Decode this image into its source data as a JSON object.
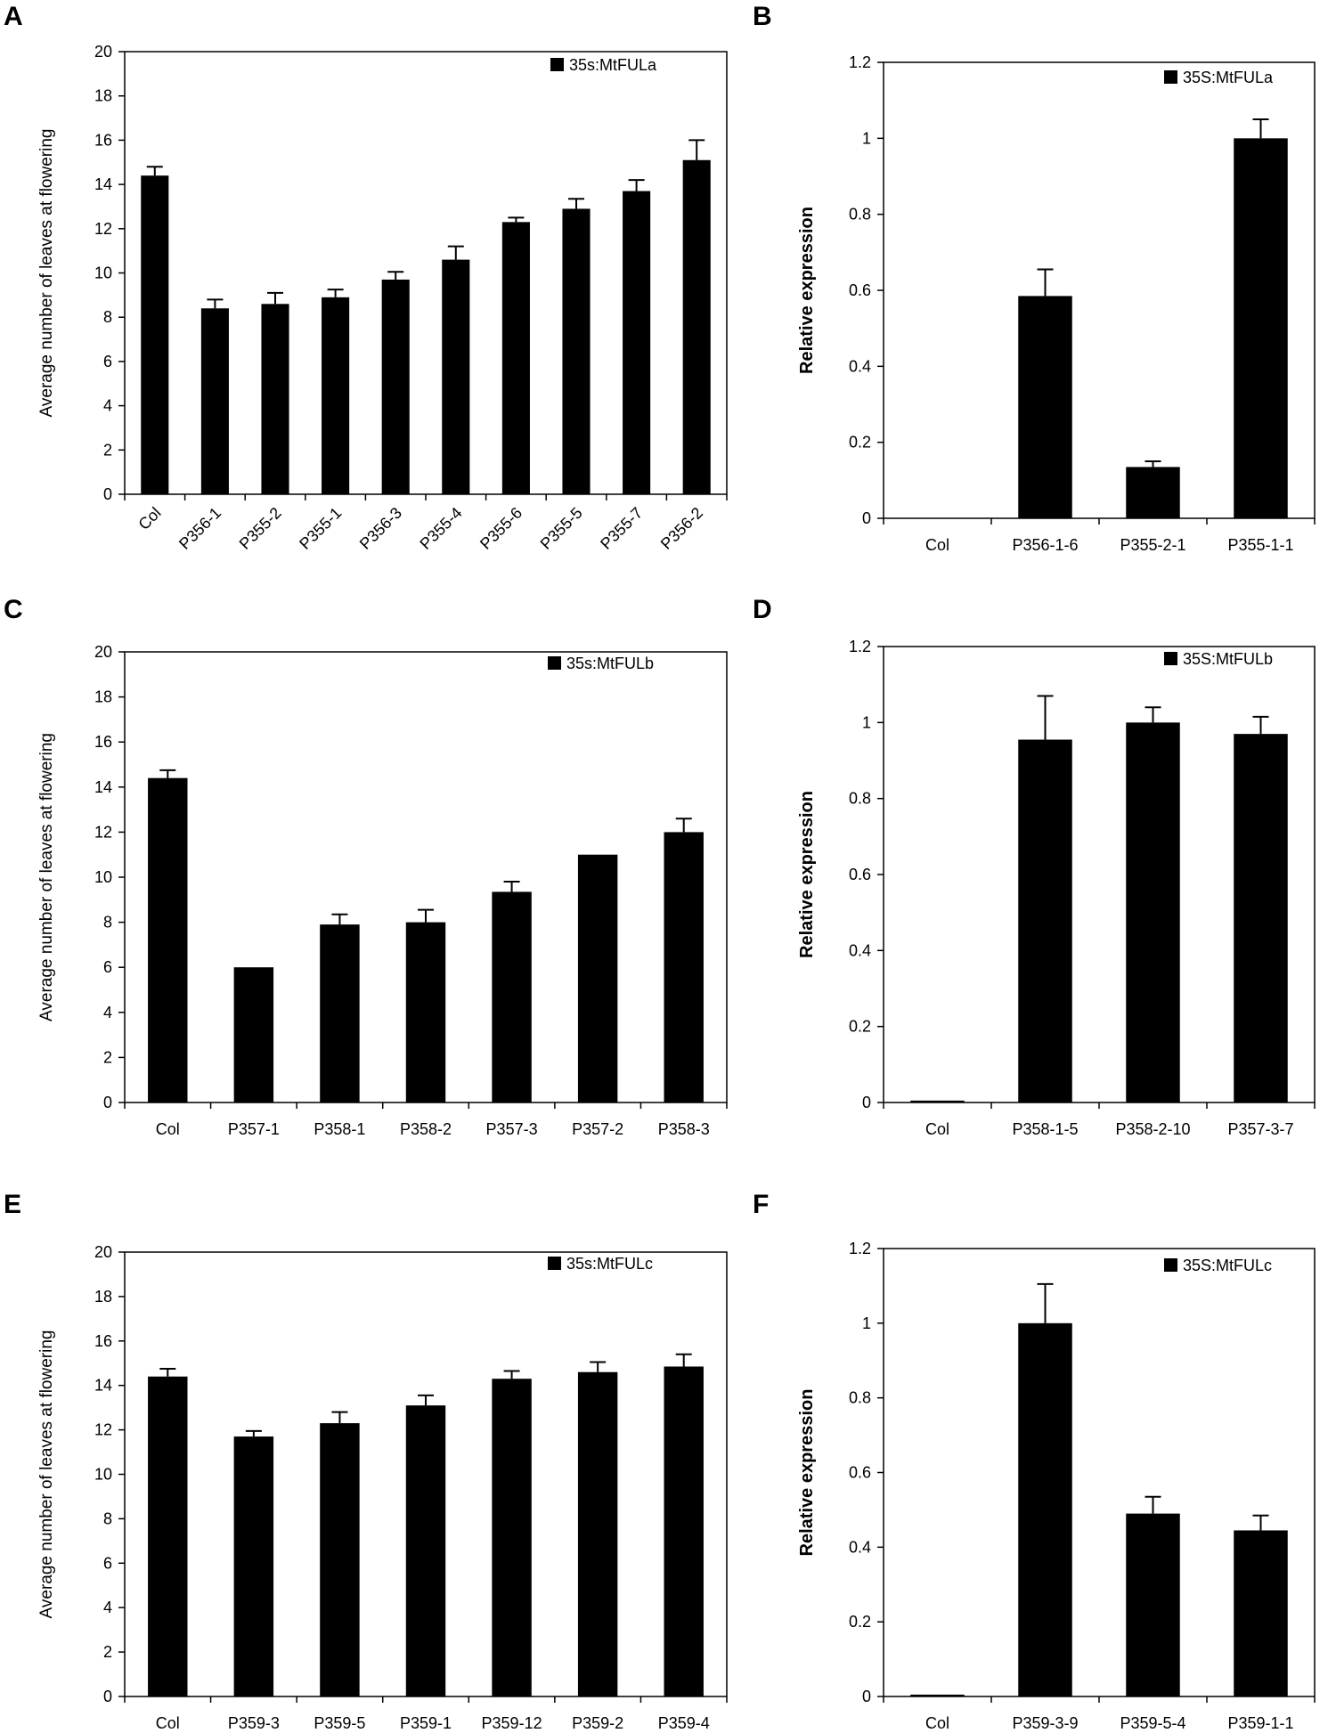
{
  "chart_data": [
    {
      "type": "bar",
      "panel": "A",
      "legend": "35s:MtFULa",
      "ylabel": "Average number of leaves at flowering",
      "ylim": [
        0,
        20
      ],
      "ytick_step": 2,
      "ytick_labels": [
        "0",
        "2",
        "4",
        "6",
        "8",
        "10",
        "12",
        "14",
        "16",
        "18",
        "20"
      ],
      "rotated_labels": true,
      "categories": [
        "Col",
        "P356-1",
        "P355-2",
        "P355-1",
        "P356-3",
        "P355-4",
        "P355-6",
        "P355-5",
        "P355-7",
        "P356-2"
      ],
      "values": [
        14.4,
        8.4,
        8.6,
        8.9,
        9.7,
        10.6,
        12.3,
        12.9,
        13.7,
        15.1
      ],
      "errors": [
        0.4,
        0.4,
        0.5,
        0.35,
        0.35,
        0.6,
        0.2,
        0.45,
        0.5,
        0.9
      ]
    },
    {
      "type": "bar",
      "panel": "B",
      "legend": "35S:MtFULa",
      "ylabel": "Relative expression",
      "ylim": [
        0,
        1.2
      ],
      "ytick_step": 0.2,
      "ytick_labels": [
        "0",
        "0.2",
        "0.4",
        "0.6",
        "0.8",
        "1",
        "1.2"
      ],
      "rotated_labels": false,
      "categories": [
        "Col",
        "P356-1-6",
        "P355-2-1",
        "P355-1-1"
      ],
      "values": [
        0.0,
        0.585,
        0.135,
        1.0
      ],
      "errors": [
        0.0,
        0.07,
        0.015,
        0.05
      ]
    },
    {
      "type": "bar",
      "panel": "C",
      "legend": "35s:MtFULb",
      "ylabel": "Average number of leaves at flowering",
      "ylim": [
        0,
        20
      ],
      "ytick_step": 2,
      "ytick_labels": [
        "0",
        "2",
        "4",
        "6",
        "8",
        "10",
        "12",
        "14",
        "16",
        "18",
        "20"
      ],
      "rotated_labels": false,
      "categories": [
        "Col",
        "P357-1",
        "P358-1",
        "P358-2",
        "P357-3",
        "P357-2",
        "P358-3"
      ],
      "values": [
        14.4,
        6.0,
        7.9,
        8.0,
        9.35,
        11.0,
        12.0
      ],
      "errors": [
        0.35,
        0.0,
        0.45,
        0.55,
        0.45,
        0.0,
        0.6
      ]
    },
    {
      "type": "bar",
      "panel": "D",
      "legend": "35S:MtFULb",
      "ylabel": "Relative expression",
      "ylim": [
        0,
        1.2
      ],
      "ytick_step": 0.2,
      "ytick_labels": [
        "0",
        "0.2",
        "0.4",
        "0.6",
        "0.8",
        "1",
        "1.2"
      ],
      "rotated_labels": false,
      "categories": [
        "Col",
        "P358-1-5",
        "P358-2-10",
        "P357-3-7"
      ],
      "values": [
        0.005,
        0.955,
        1.0,
        0.97
      ],
      "errors": [
        0.0,
        0.115,
        0.04,
        0.045
      ]
    },
    {
      "type": "bar",
      "panel": "E",
      "legend": "35s:MtFULc",
      "ylabel": "Average number of leaves at flowering",
      "ylim": [
        0,
        20
      ],
      "ytick_step": 2,
      "ytick_labels": [
        "0",
        "2",
        "4",
        "6",
        "8",
        "10",
        "12",
        "14",
        "16",
        "18",
        "20"
      ],
      "rotated_labels": false,
      "categories": [
        "Col",
        "P359-3",
        "P359-5",
        "P359-1",
        "P359-12",
        "P359-2",
        "P359-4"
      ],
      "values": [
        14.4,
        11.7,
        12.3,
        13.1,
        14.3,
        14.6,
        14.85
      ],
      "errors": [
        0.35,
        0.25,
        0.5,
        0.45,
        0.35,
        0.45,
        0.55
      ]
    },
    {
      "type": "bar",
      "panel": "F",
      "legend": "35S:MtFULc",
      "ylabel": "Relative expression",
      "ylim": [
        0,
        1.2
      ],
      "ytick_step": 0.2,
      "ytick_labels": [
        "0",
        "0.2",
        "0.4",
        "0.6",
        "0.8",
        "1",
        "1.2"
      ],
      "rotated_labels": false,
      "categories": [
        "Col",
        "P359-3-9",
        "P359-5-4",
        "P359-1-1"
      ],
      "values": [
        0.005,
        1.0,
        0.49,
        0.445
      ],
      "errors": [
        0.0,
        0.105,
        0.045,
        0.04
      ]
    }
  ]
}
